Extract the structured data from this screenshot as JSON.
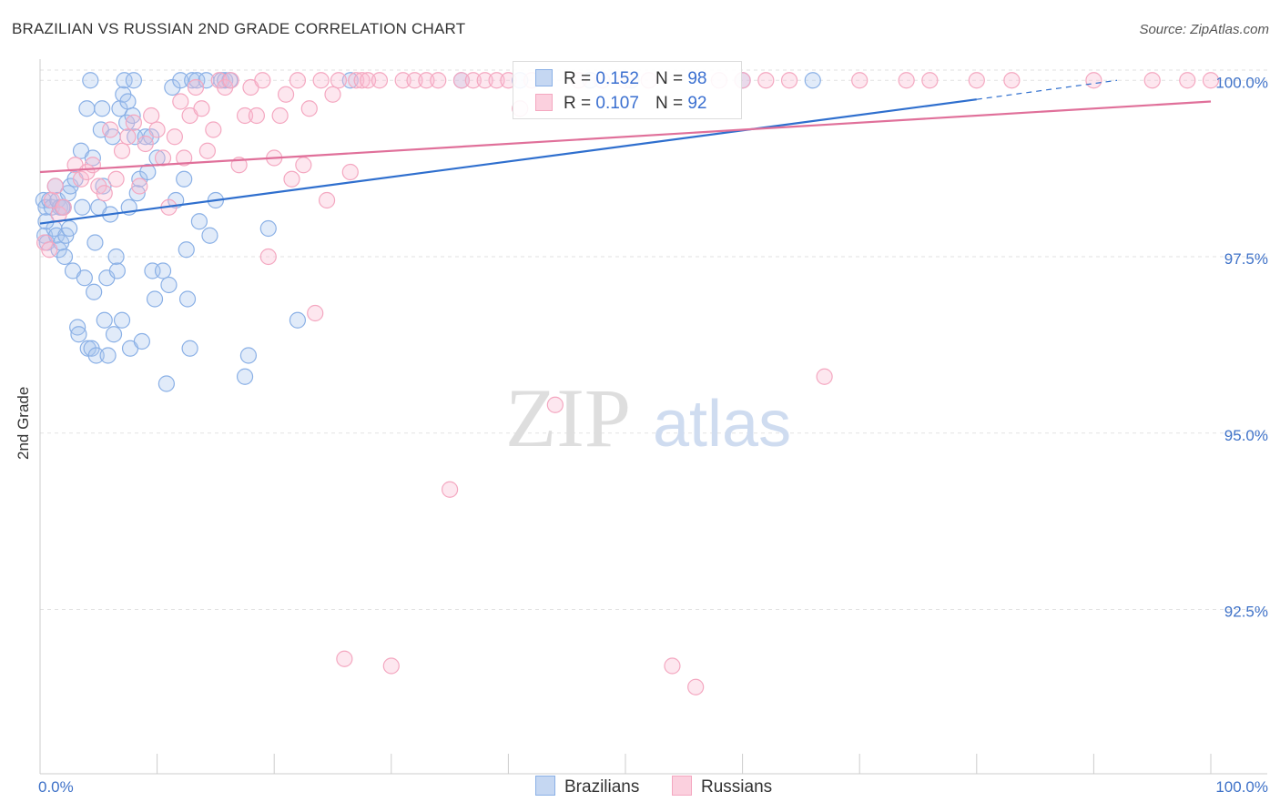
{
  "chart_data": {
    "type": "scatter",
    "title": "BRAZILIAN VS RUSSIAN 2ND GRADE CORRELATION CHART",
    "source": "Source: ZipAtlas.com",
    "xlabel": "",
    "ylabel": "2nd Grade",
    "xlim": [
      0,
      100
    ],
    "ylim": [
      90.3,
      100.3
    ],
    "x_tick_labels": [
      "0.0%",
      "100.0%"
    ],
    "y_ticks": [
      92.5,
      95.0,
      97.5,
      100.0
    ],
    "y_tick_labels": [
      "92.5%",
      "95.0%",
      "97.5%",
      "100.0%"
    ],
    "grid": true,
    "watermark": "ZIPatlas",
    "legend": {
      "placement": "top-center",
      "entries": [
        {
          "r_label": "R =",
          "r_value": "0.152",
          "n_label": "N =",
          "n_value": "98"
        },
        {
          "r_label": "R =",
          "r_value": "0.107",
          "n_label": "N =",
          "n_value": "92"
        }
      ]
    },
    "series": [
      {
        "name": "Brazilians",
        "color": "#8ab0e6",
        "line_color": "#2f6fce",
        "trend": {
          "x": [
            0,
            80,
            92
          ],
          "y": [
            97.97,
            99.73,
            100.0
          ],
          "solid_until": 80
        },
        "points": [
          [
            0.3,
            98.3
          ],
          [
            0.4,
            97.8
          ],
          [
            0.5,
            98.2
          ],
          [
            0.6,
            97.7
          ],
          [
            0.8,
            98.3
          ],
          [
            1.0,
            98.2
          ],
          [
            1.2,
            97.9
          ],
          [
            1.3,
            98.5
          ],
          [
            1.4,
            97.8
          ],
          [
            1.5,
            98.3
          ],
          [
            1.6,
            97.6
          ],
          [
            1.7,
            98.2
          ],
          [
            1.8,
            97.7
          ],
          [
            2.0,
            98.2
          ],
          [
            2.2,
            97.8
          ],
          [
            2.4,
            98.4
          ],
          [
            2.5,
            97.9
          ],
          [
            2.6,
            98.5
          ],
          [
            2.8,
            97.3
          ],
          [
            3.0,
            98.6
          ],
          [
            3.2,
            96.5
          ],
          [
            3.3,
            96.4
          ],
          [
            3.5,
            99.0
          ],
          [
            3.6,
            98.2
          ],
          [
            3.8,
            97.2
          ],
          [
            4.0,
            99.6
          ],
          [
            4.1,
            96.2
          ],
          [
            4.3,
            100.0
          ],
          [
            4.4,
            96.2
          ],
          [
            4.5,
            98.9
          ],
          [
            4.6,
            97.0
          ],
          [
            4.7,
            97.7
          ],
          [
            4.8,
            96.1
          ],
          [
            5.0,
            98.2
          ],
          [
            5.2,
            99.3
          ],
          [
            5.3,
            99.6
          ],
          [
            5.4,
            98.5
          ],
          [
            5.5,
            96.6
          ],
          [
            5.7,
            97.2
          ],
          [
            5.8,
            96.1
          ],
          [
            6.0,
            98.1
          ],
          [
            6.2,
            99.2
          ],
          [
            6.3,
            96.4
          ],
          [
            6.5,
            97.5
          ],
          [
            6.6,
            97.3
          ],
          [
            6.8,
            99.6
          ],
          [
            7.0,
            96.6
          ],
          [
            7.1,
            99.8
          ],
          [
            7.2,
            100.0
          ],
          [
            7.4,
            99.4
          ],
          [
            7.5,
            99.7
          ],
          [
            7.6,
            98.2
          ],
          [
            7.7,
            96.2
          ],
          [
            7.9,
            99.5
          ],
          [
            8.0,
            100.0
          ],
          [
            8.1,
            99.2
          ],
          [
            8.3,
            98.4
          ],
          [
            8.5,
            98.6
          ],
          [
            8.7,
            96.3
          ],
          [
            9.0,
            99.2
          ],
          [
            9.2,
            98.7
          ],
          [
            9.5,
            99.2
          ],
          [
            9.6,
            97.3
          ],
          [
            9.8,
            96.9
          ],
          [
            10.0,
            98.9
          ],
          [
            10.5,
            97.3
          ],
          [
            10.8,
            95.7
          ],
          [
            11.0,
            97.1
          ],
          [
            11.3,
            99.9
          ],
          [
            11.6,
            98.3
          ],
          [
            12.0,
            100.0
          ],
          [
            12.3,
            98.6
          ],
          [
            12.5,
            97.6
          ],
          [
            12.6,
            96.9
          ],
          [
            12.8,
            96.2
          ],
          [
            13.0,
            100.0
          ],
          [
            13.4,
            100.0
          ],
          [
            13.6,
            98.0
          ],
          [
            14.2,
            100.0
          ],
          [
            14.5,
            97.8
          ],
          [
            15.0,
            98.3
          ],
          [
            15.5,
            100.0
          ],
          [
            15.8,
            100.0
          ],
          [
            16.2,
            100.0
          ],
          [
            17.5,
            95.8
          ],
          [
            17.8,
            96.1
          ],
          [
            19.5,
            97.9
          ],
          [
            22.0,
            96.6
          ],
          [
            26.5,
            100.0
          ],
          [
            36.0,
            100.0
          ],
          [
            41.0,
            100.0
          ],
          [
            47.0,
            100.0
          ],
          [
            50.5,
            100.0
          ],
          [
            60.0,
            100.0
          ],
          [
            66.0,
            100.0
          ],
          [
            0.5,
            98.0
          ],
          [
            1.9,
            98.2
          ],
          [
            2.1,
            97.5
          ]
        ]
      },
      {
        "name": "Russians",
        "color": "#f4a7c0",
        "line_color": "#e0709a",
        "trend": {
          "x": [
            0,
            100
          ],
          "y": [
            98.7,
            99.7
          ]
        },
        "points": [
          [
            0.4,
            97.7
          ],
          [
            0.8,
            97.6
          ],
          [
            1.0,
            98.3
          ],
          [
            1.3,
            98.5
          ],
          [
            1.6,
            98.1
          ],
          [
            2.0,
            98.2
          ],
          [
            3.0,
            98.8
          ],
          [
            3.5,
            98.6
          ],
          [
            4.0,
            98.7
          ],
          [
            4.5,
            98.8
          ],
          [
            5.0,
            98.5
          ],
          [
            5.5,
            98.4
          ],
          [
            6.0,
            99.3
          ],
          [
            6.5,
            98.6
          ],
          [
            7.0,
            99.0
          ],
          [
            7.5,
            99.2
          ],
          [
            8.0,
            99.4
          ],
          [
            8.5,
            98.5
          ],
          [
            9.0,
            99.1
          ],
          [
            9.5,
            99.5
          ],
          [
            10.0,
            99.3
          ],
          [
            10.5,
            98.9
          ],
          [
            11.0,
            98.2
          ],
          [
            11.5,
            99.2
          ],
          [
            12.0,
            99.7
          ],
          [
            12.3,
            98.9
          ],
          [
            12.8,
            99.5
          ],
          [
            13.3,
            99.9
          ],
          [
            13.8,
            99.6
          ],
          [
            14.3,
            99.0
          ],
          [
            14.8,
            99.3
          ],
          [
            15.3,
            100.0
          ],
          [
            15.8,
            99.9
          ],
          [
            16.3,
            100.0
          ],
          [
            17.0,
            98.8
          ],
          [
            17.5,
            99.5
          ],
          [
            18.0,
            99.9
          ],
          [
            18.5,
            99.5
          ],
          [
            19.0,
            100.0
          ],
          [
            19.5,
            97.5
          ],
          [
            20.0,
            98.9
          ],
          [
            20.5,
            99.5
          ],
          [
            21.0,
            99.8
          ],
          [
            21.5,
            98.6
          ],
          [
            22.0,
            100.0
          ],
          [
            22.5,
            98.8
          ],
          [
            23.0,
            99.6
          ],
          [
            23.5,
            96.7
          ],
          [
            24.0,
            100.0
          ],
          [
            24.5,
            98.3
          ],
          [
            25.0,
            99.8
          ],
          [
            25.5,
            100.0
          ],
          [
            26.0,
            91.8
          ],
          [
            26.5,
            98.7
          ],
          [
            27.0,
            100.0
          ],
          [
            27.5,
            100.0
          ],
          [
            28.0,
            100.0
          ],
          [
            29.0,
            100.0
          ],
          [
            30.0,
            91.7
          ],
          [
            31.0,
            100.0
          ],
          [
            32.0,
            100.0
          ],
          [
            33.0,
            100.0
          ],
          [
            34.0,
            100.0
          ],
          [
            35.0,
            94.2
          ],
          [
            36.0,
            100.0
          ],
          [
            37.0,
            100.0
          ],
          [
            38.0,
            100.0
          ],
          [
            39.0,
            100.0
          ],
          [
            40.0,
            100.0
          ],
          [
            41.0,
            99.6
          ],
          [
            42.0,
            100.0
          ],
          [
            44.0,
            95.4
          ],
          [
            46.0,
            100.0
          ],
          [
            48.0,
            100.0
          ],
          [
            50.0,
            100.0
          ],
          [
            52.0,
            100.0
          ],
          [
            54.0,
            91.7
          ],
          [
            56.0,
            91.4
          ],
          [
            58.0,
            100.0
          ],
          [
            60.0,
            100.0
          ],
          [
            62.0,
            100.0
          ],
          [
            64.0,
            100.0
          ],
          [
            67.0,
            95.8
          ],
          [
            70.0,
            100.0
          ],
          [
            74.0,
            100.0
          ],
          [
            76.0,
            100.0
          ],
          [
            80.0,
            100.0
          ],
          [
            83.0,
            100.0
          ],
          [
            90.0,
            100.0
          ],
          [
            95.0,
            100.0
          ],
          [
            98.0,
            100.0
          ],
          [
            100.0,
            100.0
          ]
        ]
      }
    ]
  }
}
